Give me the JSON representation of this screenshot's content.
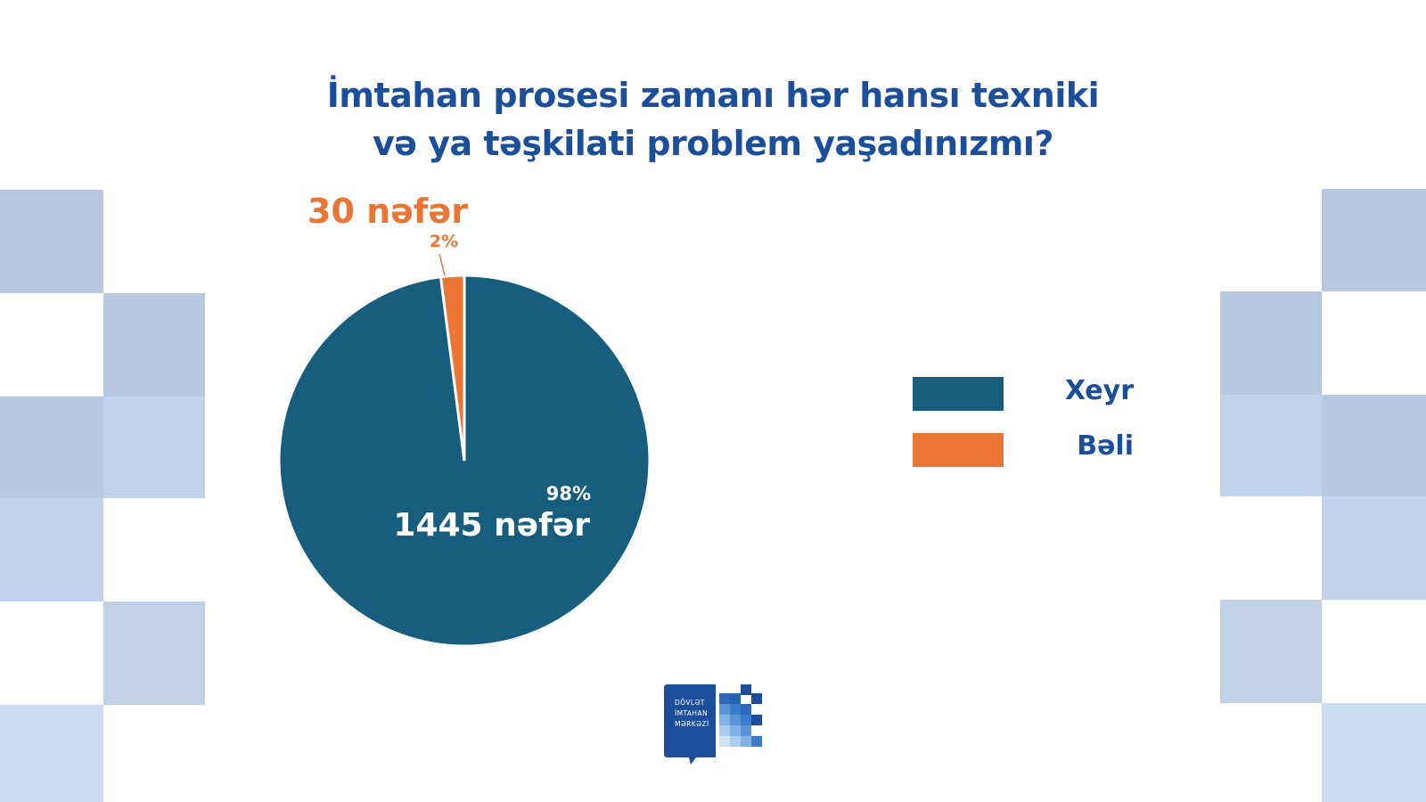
{
  "title_line1": "İmtahan prosesi zamanı hər hansı texniki",
  "title_line2": "və ya təşkilati problem yaşadınızmı?",
  "logo": {
    "line1": "DÖVLƏT",
    "line2": "İMTAHAN",
    "line3": "MƏRKƏZİ"
  },
  "colors": {
    "xeyr": "#165d7e",
    "beli": "#ea7534",
    "title": "#1b4f9c",
    "deco": "#b7c8e1"
  },
  "chart_data": {
    "type": "pie",
    "title": "İmtahan prosesi zamanı hər hansı texniki və ya təşkilati problem yaşadınızmı?",
    "slices": [
      {
        "name": "Xeyr",
        "value": 1445,
        "count_label": "1445 nəfər",
        "percent_label": "98%",
        "color": "#165d7e"
      },
      {
        "name": "Bəli",
        "value": 30,
        "count_label": "30 nəfər",
        "percent_label": "2%",
        "color": "#ea7534"
      }
    ],
    "legend": [
      "Xeyr",
      "Bəli"
    ],
    "legend_position": "right"
  }
}
